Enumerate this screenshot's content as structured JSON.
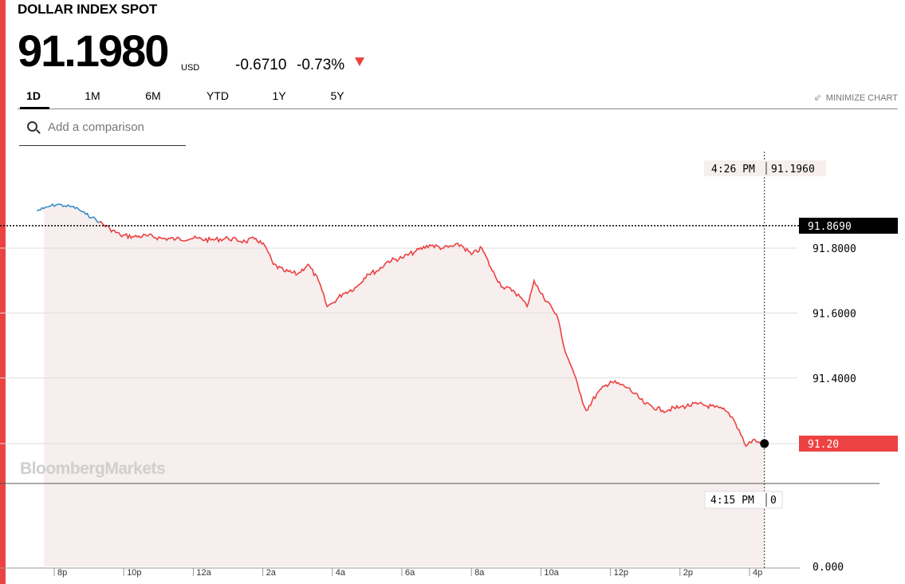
{
  "header": {
    "title": "DOLLAR INDEX SPOT",
    "price": "91.1980",
    "currency": "USD",
    "change": "-0.6710",
    "change_pct": "-0.73%"
  },
  "range_tabs": [
    {
      "label": "1D",
      "active": true
    },
    {
      "label": "1M",
      "active": false
    },
    {
      "label": "6M",
      "active": false
    },
    {
      "label": "YTD",
      "active": false
    },
    {
      "label": "1Y",
      "active": false
    },
    {
      "label": "5Y",
      "active": false
    }
  ],
  "minimize_label": "MINIMIZE CHART",
  "comparison_placeholder": "Add a comparison",
  "watermark": "BloombergMarkets",
  "colors": {
    "accent": "#ec4242",
    "line_down": "#ec4242",
    "line_prev_session": "#3a8fc4",
    "fill": "#f7eeee",
    "reference_label_bg": "#000000"
  },
  "chart_data": {
    "type": "line",
    "y_tick_labels": [
      "91.8000",
      "91.6000",
      "91.4000",
      "0.000"
    ],
    "y_ticks": [
      91.8,
      91.6,
      91.4
    ],
    "ylim": [
      91.07,
      92.0
    ],
    "x_tick_labels": [
      "8p",
      "10p",
      "12a",
      "2a",
      "4a",
      "6a",
      "8a",
      "10a",
      "12p",
      "2p",
      "4p"
    ],
    "x_ticks_hours": [
      20,
      22,
      24,
      26,
      28,
      30,
      32,
      34,
      36,
      38,
      40
    ],
    "xlim_hours": [
      19.4,
      41.4
    ],
    "previous_close": 91.869,
    "previous_close_label": "91.8690",
    "last_price": 91.198,
    "last_price_label": "91.20",
    "crosshair": {
      "time_label": "4:26 PM",
      "value_label": "91.1960",
      "time_hours": 40.43
    },
    "volume_crosshair": {
      "time_label": "4:15 PM",
      "value_label": "0"
    },
    "volume_axis_label": "0.000",
    "pre_session_series": {
      "x": [
        19.5,
        19.7,
        19.9,
        20.1,
        20.3,
        20.5,
        20.7,
        20.9,
        21.1,
        21.3
      ],
      "y": [
        91.915,
        91.922,
        91.93,
        91.935,
        91.93,
        91.928,
        91.92,
        91.905,
        91.895,
        91.88
      ]
    },
    "series": {
      "x": [
        21.3,
        21.6,
        21.9,
        22.3,
        22.7,
        23.1,
        23.5,
        24.0,
        24.5,
        25.0,
        25.5,
        25.8,
        26.1,
        26.3,
        26.6,
        27.0,
        27.3,
        27.6,
        27.85,
        28.0,
        28.3,
        28.7,
        29.0,
        29.3,
        29.6,
        30.0,
        30.4,
        30.8,
        31.2,
        31.7,
        32.0,
        32.3,
        32.6,
        32.9,
        33.2,
        33.4,
        33.6,
        33.8,
        34.0,
        34.3,
        34.5,
        34.7,
        34.9,
        35.1,
        35.3,
        35.6,
        36.0,
        36.5,
        37.0,
        37.5,
        38.0,
        38.5,
        39.0,
        39.3,
        39.5,
        39.7,
        39.9,
        40.1,
        40.3,
        40.43
      ],
      "y": [
        91.88,
        91.86,
        91.84,
        91.835,
        91.838,
        91.83,
        91.828,
        91.83,
        91.825,
        91.83,
        91.82,
        91.83,
        91.8,
        91.75,
        91.73,
        91.72,
        91.75,
        91.7,
        91.62,
        91.63,
        91.66,
        91.68,
        91.72,
        91.73,
        91.76,
        91.77,
        91.79,
        91.81,
        91.8,
        91.81,
        91.78,
        91.8,
        91.73,
        91.68,
        91.67,
        91.65,
        91.62,
        91.7,
        91.66,
        91.62,
        91.58,
        91.48,
        91.43,
        91.36,
        91.3,
        91.35,
        91.39,
        91.37,
        91.32,
        91.3,
        91.31,
        91.32,
        91.31,
        91.3,
        91.28,
        91.24,
        91.19,
        91.21,
        91.2,
        91.198
      ]
    }
  }
}
